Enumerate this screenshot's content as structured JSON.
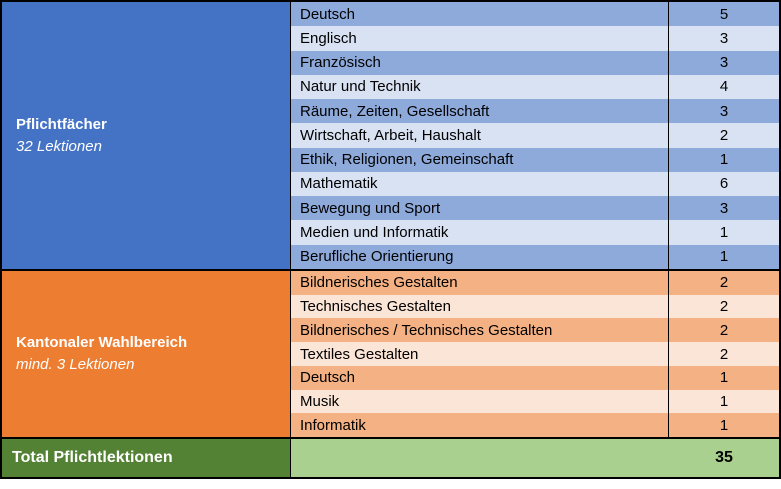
{
  "chart_data": {
    "type": "table",
    "sections": [
      {
        "category": "Pflichtfächer",
        "subtitle": "32 Lektionen",
        "rows": [
          {
            "subject": "Deutsch",
            "lessons": 5
          },
          {
            "subject": "Englisch",
            "lessons": 3
          },
          {
            "subject": "Französisch",
            "lessons": 3
          },
          {
            "subject": "Natur und Technik",
            "lessons": 4
          },
          {
            "subject": "Räume, Zeiten, Gesellschaft",
            "lessons": 3
          },
          {
            "subject": "Wirtschaft, Arbeit, Haushalt",
            "lessons": 2
          },
          {
            "subject": "Ethik, Religionen, Gemeinschaft",
            "lessons": 1
          },
          {
            "subject": "Mathematik",
            "lessons": 6
          },
          {
            "subject": "Bewegung und Sport",
            "lessons": 3
          },
          {
            "subject": "Medien und Informatik",
            "lessons": 1
          },
          {
            "subject": "Berufliche Orientierung",
            "lessons": 1
          }
        ]
      },
      {
        "category": "Kantonaler Wahlbereich",
        "subtitle": "mind. 3 Lektionen",
        "rows": [
          {
            "subject": "Bildnerisches Gestalten",
            "lessons": 2
          },
          {
            "subject": "Technisches Gestalten",
            "lessons": 2
          },
          {
            "subject": "Bildnerisches / Technisches Gestalten",
            "lessons": 2
          },
          {
            "subject": "Textiles Gestalten",
            "lessons": 2
          },
          {
            "subject": "Deutsch",
            "lessons": 1
          },
          {
            "subject": "Musik",
            "lessons": 1
          },
          {
            "subject": "Informatik",
            "lessons": 1
          }
        ]
      }
    ],
    "total": {
      "label": "Total Pflichtlektionen",
      "value": 35
    }
  },
  "colors": {
    "blue-header": "#4472C4",
    "blue-row-dark": "#8EAADB",
    "blue-row-light": "#D9E2F3",
    "orange-header": "#ED7D31",
    "orange-row-dark": "#F4B183",
    "orange-row-light": "#FBE5D6",
    "green-dark": "#548235",
    "green-light": "#A9D08E",
    "border": "#000000"
  }
}
